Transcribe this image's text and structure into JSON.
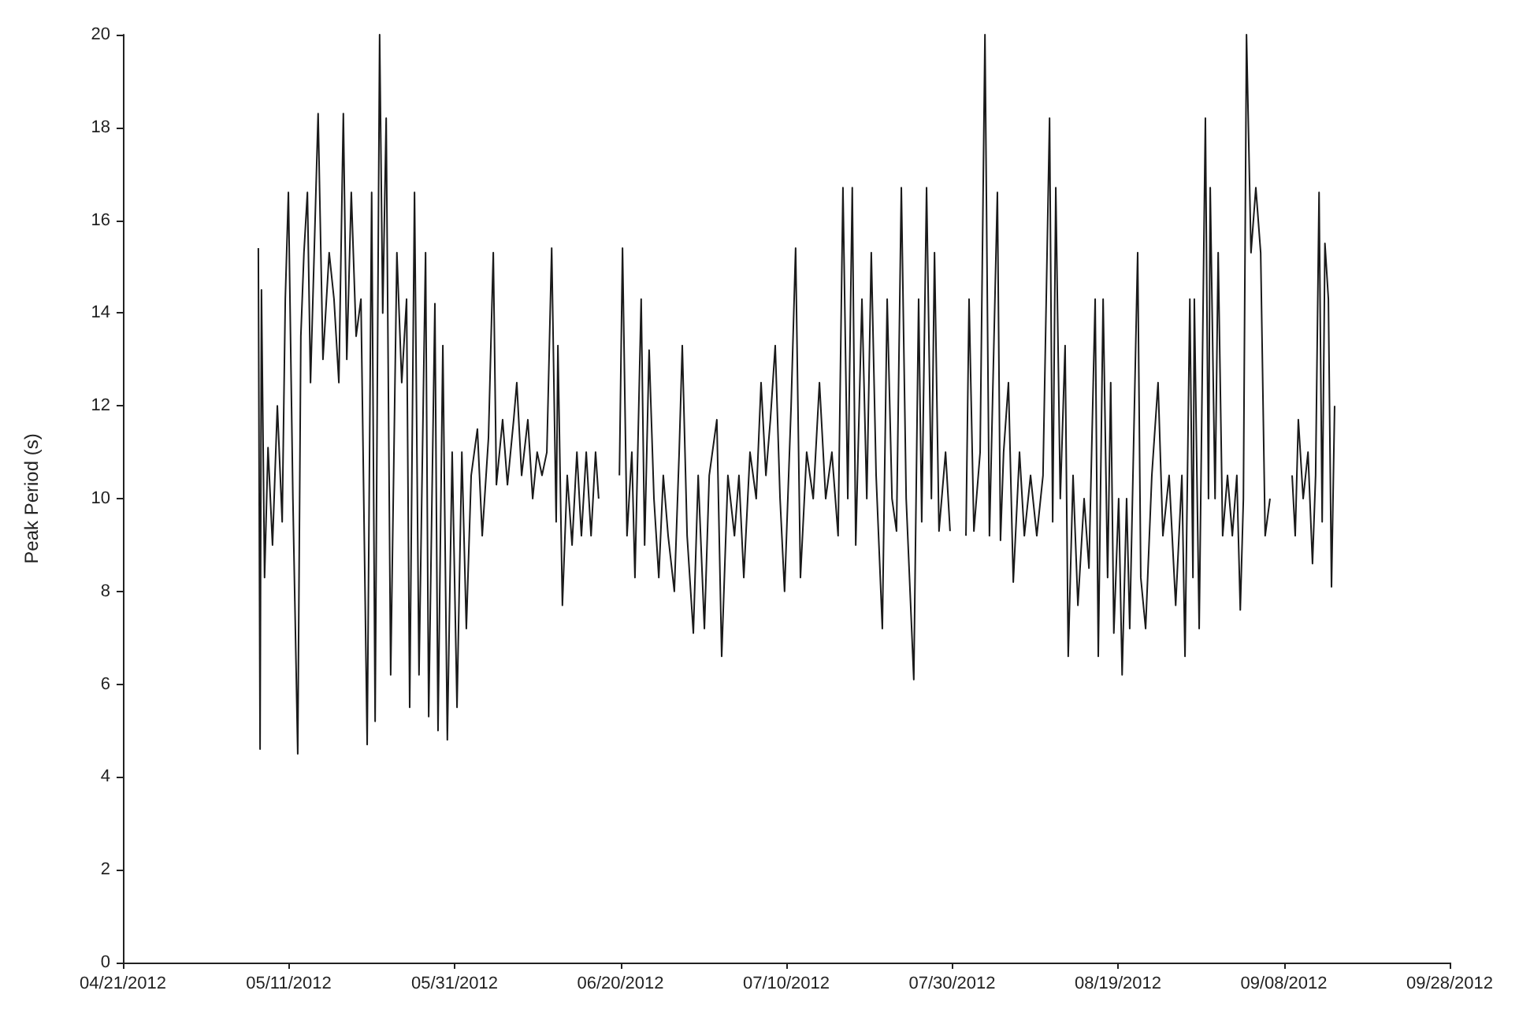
{
  "chart_data": {
    "type": "line",
    "ylabel": "Peak Period (s)",
    "marker": "none",
    "line_style": "solid",
    "grid": false,
    "xlim": [
      "2012-04-21",
      "2012-09-28"
    ],
    "xticks": [
      {
        "value": "2012-04-21",
        "label": "04/21/2012"
      },
      {
        "value": "2012-05-11",
        "label": "05/11/2012"
      },
      {
        "value": "2012-05-31",
        "label": "05/31/2012"
      },
      {
        "value": "2012-06-20",
        "label": "06/20/2012"
      },
      {
        "value": "2012-07-10",
        "label": "07/10/2012"
      },
      {
        "value": "2012-07-30",
        "label": "07/30/2012"
      },
      {
        "value": "2012-08-19",
        "label": "08/19/2012"
      },
      {
        "value": "2012-09-08",
        "label": "09/08/2012"
      },
      {
        "value": "2012-09-28",
        "label": "09/28/2012"
      }
    ],
    "ylim": [
      0,
      20
    ],
    "yticks": [
      0,
      2,
      4,
      6,
      8,
      10,
      12,
      14,
      16,
      18,
      20
    ],
    "series": [
      {
        "color": "#1a1a1a",
        "x": [
          "2012-05-07T08:00",
          "2012-05-07T13:00",
          "2012-05-07T17:00",
          "2012-05-08T02:00",
          "2012-05-08T12:00",
          "2012-05-09T01:00",
          "2012-05-09T15:00",
          "2012-05-10T05:00",
          "2012-05-10T14:00",
          "2012-05-10T23:00",
          "2012-05-11T12:00",
          "2012-05-12T02:00",
          "2012-05-12T11:00",
          "2012-05-12T20:00",
          "2012-05-13T06:00",
          "2012-05-13T15:00",
          "2012-05-14T13:00",
          "2012-05-15T03:00",
          "2012-05-15T21:00",
          "2012-05-16T11:00",
          "2012-05-17T01:00",
          "2012-05-17T14:00",
          "2012-05-18T00:00",
          "2012-05-18T13:00",
          "2012-05-19T03:00",
          "2012-05-19T17:00",
          "2012-05-20T11:00",
          "2012-05-21T00:00",
          "2012-05-21T10:00",
          "2012-05-21T23:00",
          "2012-05-22T08:00",
          "2012-05-22T18:00",
          "2012-05-23T07:00",
          "2012-05-24T01:00",
          "2012-05-24T15:00",
          "2012-05-25T05:00",
          "2012-05-25T14:00",
          "2012-05-26T04:00",
          "2012-05-26T17:00",
          "2012-05-27T12:00",
          "2012-05-27T21:00",
          "2012-05-28T15:00",
          "2012-05-29T00:00",
          "2012-05-29T14:00",
          "2012-05-30T03:00",
          "2012-05-30T17:00",
          "2012-05-31T07:00",
          "2012-05-31T21:00",
          "2012-06-01T10:00",
          "2012-06-02T00:00",
          "2012-06-02T18:00",
          "2012-06-03T08:00",
          "2012-06-04T02:00",
          "2012-06-04T16:00",
          "2012-06-05T01:00",
          "2012-06-05T19:00",
          "2012-06-06T09:00",
          "2012-06-07T03:00",
          "2012-06-07T12:00",
          "2012-06-08T02:00",
          "2012-06-08T20:00",
          "2012-06-09T10:00",
          "2012-06-09T23:00",
          "2012-06-10T13:00",
          "2012-06-11T03:00",
          "2012-06-11T17:00",
          "2012-06-12T06:00",
          "2012-06-12T11:00",
          "2012-06-13T00:00",
          "2012-06-13T14:00",
          "2012-06-14T04:00",
          "2012-06-14T18:00",
          "2012-06-15T07:00",
          "2012-06-15T21:00",
          "2012-06-16T11:00",
          "2012-06-17T00:00",
          "2012-06-17T09:00",
          "2012-06-18T13:00",
          "2012-06-19T21:00",
          "2012-06-20T06:00",
          "2012-06-20T19:00",
          "2012-06-21T09:00",
          "2012-06-21T18:00",
          "2012-06-22T12:00",
          "2012-06-22T22:00",
          "2012-06-23T11:00",
          "2012-06-24T01:00",
          "2012-06-24T15:00",
          "2012-06-25T04:00",
          "2012-06-25T18:00",
          "2012-06-26T12:00",
          "2012-06-27T02:00",
          "2012-06-27T11:00",
          "2012-06-28T01:00",
          "2012-06-28T19:00",
          "2012-06-29T09:00",
          "2012-06-30T03:00",
          "2012-06-30T17:00",
          "2012-07-01T15:00",
          "2012-07-02T05:00",
          "2012-07-02T23:00",
          "2012-07-03T18:00",
          "2012-07-04T07:00",
          "2012-07-04T21:00",
          "2012-07-05T15:00",
          "2012-07-06T09:00",
          "2012-07-06T23:00",
          "2012-07-07T13:00",
          "2012-07-08T02:00",
          "2012-07-08T16:00",
          "2012-07-09T06:00",
          "2012-07-09T19:00",
          "2012-07-10T14:00",
          "2012-07-11T03:00",
          "2012-07-11T17:00",
          "2012-07-12T11:00",
          "2012-07-13T06:00",
          "2012-07-14T00:00",
          "2012-07-14T18:00",
          "2012-07-15T12:00",
          "2012-07-16T06:00",
          "2012-07-16T20:00",
          "2012-07-17T10:00",
          "2012-07-17T23:00",
          "2012-07-18T09:00",
          "2012-07-19T03:00",
          "2012-07-19T17:00",
          "2012-07-20T06:00",
          "2012-07-20T20:00",
          "2012-07-21T14:00",
          "2012-07-22T04:00",
          "2012-07-22T18:00",
          "2012-07-23T07:00",
          "2012-07-23T21:00",
          "2012-07-24T11:00",
          "2012-07-25T09:00",
          "2012-07-25T23:00",
          "2012-07-26T08:00",
          "2012-07-26T22:00",
          "2012-07-27T12:00",
          "2012-07-27T21:00",
          "2012-07-28T10:00",
          "2012-07-29T05:00",
          "2012-07-29T18:00",
          "2012-07-30T17:00",
          "2012-07-31T16:00",
          "2012-08-01T01:00",
          "2012-08-01T15:00",
          "2012-08-02T09:00",
          "2012-08-02T23:00",
          "2012-08-03T12:00",
          "2012-08-04T11:00",
          "2012-08-04T20:00",
          "2012-08-05T05:00",
          "2012-08-05T19:00",
          "2012-08-06T09:00",
          "2012-08-07T03:00",
          "2012-08-07T17:00",
          "2012-08-08T11:00",
          "2012-08-09T05:00",
          "2012-08-09T23:00",
          "2012-08-10T18:00",
          "2012-08-11T03:00",
          "2012-08-11T12:00",
          "2012-08-12T01:00",
          "2012-08-12T15:00",
          "2012-08-13T00:00",
          "2012-08-13T14:00",
          "2012-08-14T04:00",
          "2012-08-14T22:00",
          "2012-08-15T12:00",
          "2012-08-16T06:00",
          "2012-08-16T15:00",
          "2012-08-17T05:00",
          "2012-08-17T18:00",
          "2012-08-18T03:00",
          "2012-08-18T12:00",
          "2012-08-19T02:00",
          "2012-08-19T12:00",
          "2012-08-20T01:00",
          "2012-08-20T10:00",
          "2012-08-21T09:00",
          "2012-08-21T18:00",
          "2012-08-22T08:00",
          "2012-08-23T02:00",
          "2012-08-23T20:00",
          "2012-08-24T10:00",
          "2012-08-25T04:00",
          "2012-08-25T23:00",
          "2012-08-26T17:00",
          "2012-08-27T02:00",
          "2012-08-27T16:00",
          "2012-08-28T01:00",
          "2012-08-28T05:00",
          "2012-08-28T19:00",
          "2012-08-29T13:00",
          "2012-08-29T22:00",
          "2012-08-30T03:00",
          "2012-08-30T17:00",
          "2012-08-31T02:00",
          "2012-08-31T15:00",
          "2012-09-01T05:00",
          "2012-09-01T19:00",
          "2012-09-02T08:00",
          "2012-09-02T18:00",
          "2012-09-03T03:00",
          "2012-09-03T12:00",
          "2012-09-04T01:00",
          "2012-09-04T15:00",
          "2012-09-05T05:00",
          "2012-09-05T18:00",
          "2012-09-06T08:00",
          "2012-09-07T12:00",
          "2012-09-09T00:00",
          "2012-09-09T09:00",
          "2012-09-09T18:00",
          "2012-09-10T08:00",
          "2012-09-10T22:00",
          "2012-09-11T11:00",
          "2012-09-11T20:00",
          "2012-09-12T06:00",
          "2012-09-12T15:00",
          "2012-09-12T23:00",
          "2012-09-13T09:00",
          "2012-09-13T18:00",
          "2012-09-14T03:00"
        ],
        "values": [
          15.4,
          4.6,
          14.5,
          8.3,
          11.1,
          9.0,
          12,
          9.5,
          14.3,
          16.6,
          10,
          4.5,
          13.5,
          15.3,
          16.6,
          12.5,
          18.3,
          13,
          15.3,
          14.3,
          12.5,
          18.3,
          13,
          16.6,
          13.5,
          14.3,
          4.7,
          16.6,
          5.2,
          20,
          14,
          18.2,
          6.2,
          15.3,
          12.5,
          14.3,
          5.5,
          16.6,
          6.2,
          15.3,
          5.3,
          14.2,
          5,
          13.3,
          4.8,
          11,
          5.5,
          11,
          7.2,
          10.5,
          11.5,
          9.2,
          11.3,
          15.3,
          10.3,
          11.7,
          10.3,
          11.7,
          12.5,
          10.5,
          11.7,
          10,
          11,
          10.5,
          11,
          15.4,
          9.5,
          13.3,
          7.7,
          10.5,
          9,
          11,
          9.2,
          11,
          9.2,
          11,
          10,
          null,
          10.5,
          15.4,
          9.2,
          11,
          8.3,
          14.3,
          9,
          13.2,
          10,
          8.3,
          10.5,
          9.2,
          8,
          11,
          13.3,
          9.2,
          7.1,
          10.5,
          7.2,
          10.5,
          11.7,
          6.6,
          10.5,
          9.2,
          10.5,
          8.3,
          11,
          10,
          12.5,
          10.5,
          11.7,
          13.3,
          10,
          8,
          12,
          15.4,
          8.3,
          11,
          10,
          12.5,
          10,
          11,
          9.2,
          16.7,
          10,
          16.7,
          9,
          14.3,
          10,
          15.3,
          10.5,
          7.2,
          14.3,
          10,
          9.3,
          16.7,
          10,
          6.1,
          14.3,
          9.5,
          16.7,
          10,
          15.3,
          9.3,
          11,
          9.3,
          null,
          9.2,
          14.3,
          9.3,
          11,
          20,
          9.2,
          16.6,
          9.1,
          11,
          12.5,
          8.2,
          11,
          9.2,
          10.5,
          9.2,
          10.5,
          18.2,
          9.5,
          16.7,
          10,
          13.3,
          6.6,
          10.5,
          7.7,
          10,
          8.5,
          14.3,
          6.6,
          14.3,
          8.3,
          12.5,
          7.1,
          10,
          6.2,
          10,
          7.2,
          15.3,
          8.3,
          7.2,
          10.5,
          12.5,
          9.2,
          10.5,
          7.7,
          10.5,
          6.6,
          14.3,
          8.3,
          14.3,
          7.2,
          18.2,
          10,
          16.7,
          10,
          15.3,
          9.2,
          10.5,
          9.2,
          10.5,
          7.6,
          10,
          20,
          15.3,
          16.7,
          15.3,
          9.2,
          10,
          null,
          10.5,
          9.2,
          11.7,
          10,
          11,
          8.6,
          10.5,
          16.6,
          9.5,
          15.5,
          14.3,
          8.1,
          12
        ]
      }
    ]
  }
}
